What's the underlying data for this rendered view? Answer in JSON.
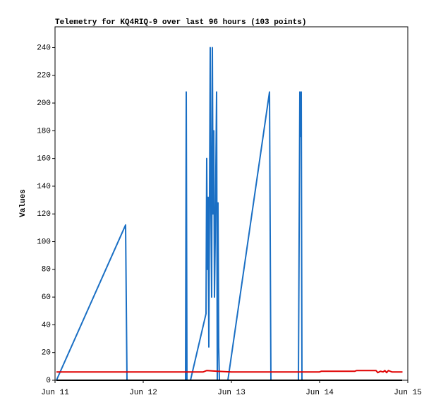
{
  "chart_data": {
    "type": "line",
    "title": "Telemetry for KQ4RIQ-9 over last 96 hours (103 points)",
    "y_label": "Values",
    "xlim": [
      0,
      4
    ],
    "xticks": [
      {
        "value": 0,
        "label": "Jun 11"
      },
      {
        "value": 1,
        "label": "Jun 12"
      },
      {
        "value": 2,
        "label": "Jun 13"
      },
      {
        "value": 3,
        "label": "Jun 14"
      },
      {
        "value": 4,
        "label": "Jun 15"
      }
    ],
    "ylim": [
      0,
      255
    ],
    "yticks": [
      0,
      20,
      40,
      60,
      80,
      100,
      120,
      140,
      160,
      180,
      200,
      220,
      240
    ],
    "grid": false,
    "series": [
      {
        "color": "#1a6fc4",
        "x": [
          0.016,
          0.8,
          0.808,
          0.816,
          1.48,
          1.484,
          1.488,
          1.496,
          1.536,
          1.712,
          1.72,
          1.728,
          1.736,
          1.744,
          1.76,
          1.768,
          1.776,
          1.784,
          1.792,
          1.8,
          1.808,
          1.816,
          1.832,
          1.84,
          1.848,
          1.856,
          1.864,
          1.96,
          2.432,
          2.44,
          2.448,
          2.76,
          2.768,
          2.776,
          2.784,
          2.792,
          2.8,
          3.936
        ],
        "values": [
          0,
          112,
          56,
          0,
          0,
          104,
          208,
          0,
          0,
          48,
          160,
          80,
          132,
          24,
          240,
          120,
          60,
          240,
          120,
          180,
          60,
          100,
          208,
          0,
          128,
          24,
          0,
          0,
          208,
          104,
          0,
          0,
          104,
          208,
          176,
          208,
          0,
          0
        ]
      },
      {
        "color": "#e00000",
        "x": [
          0.016,
          1.68,
          1.72,
          1.84,
          2.0,
          3.0,
          3.02,
          3.4,
          3.42,
          3.64,
          3.66,
          3.69,
          3.72,
          3.74,
          3.76,
          3.78,
          3.82,
          3.94
        ],
        "values": [
          6,
          6,
          7,
          6.5,
          6,
          6,
          6.5,
          6.5,
          7,
          7,
          5.5,
          6.5,
          6,
          7,
          5.5,
          7,
          6,
          6
        ]
      },
      {
        "color": "#000000",
        "x": [
          0.016,
          3.936
        ],
        "values": [
          0,
          0
        ]
      }
    ]
  }
}
